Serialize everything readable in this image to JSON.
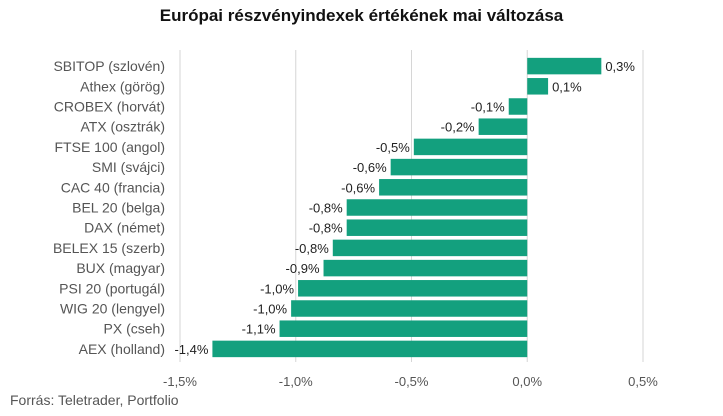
{
  "title": "Európai részvényindexek értékének mai változása",
  "source": "Forrás: Teletrader, Portfolio",
  "colors": {
    "bar": "#13a07e",
    "grid": "#d6d6d6",
    "text": "#555555",
    "value_text": "#222222"
  },
  "chart_data": {
    "type": "bar",
    "orientation": "horizontal",
    "title": "Európai részvényindexek értékének mai változása",
    "xlabel": "",
    "ylabel": "",
    "xlim": [
      -1.5,
      0.5
    ],
    "grid": true,
    "categories": [
      "SBITOP (szlovén)",
      "Athex (görög)",
      "CROBEX (horvát)",
      "ATX (osztrák)",
      "FTSE 100 (angol)",
      "SMI (svájci)",
      "CAC 40 (francia)",
      "BEL 20 (belga)",
      "DAX (német)",
      "BELEX 15 (szerb)",
      "BUX (magyar)",
      "PSI 20 (portugál)",
      "WIG 20 (lengyel)",
      "PX (cseh)",
      "AEX (holland)"
    ],
    "values": [
      0.32,
      0.09,
      -0.08,
      -0.21,
      -0.49,
      -0.59,
      -0.64,
      -0.78,
      -0.78,
      -0.84,
      -0.88,
      -0.99,
      -1.02,
      -1.07,
      -1.36
    ],
    "labels": [
      "0,3%",
      "0,1%",
      "-0,1%",
      "-0,2%",
      "-0,5%",
      "-0,6%",
      "-0,6%",
      "-0,8%",
      "-0,8%",
      "-0,8%",
      "-0,9%",
      "-1,0%",
      "-1,0%",
      "-1,1%",
      "-1,4%"
    ],
    "ticks": [
      -1.5,
      -1.0,
      -0.5,
      0.0,
      0.5
    ],
    "tick_labels": [
      "-1,5%",
      "-1,0%",
      "-0,5%",
      "0,0%",
      "0,5%"
    ]
  }
}
